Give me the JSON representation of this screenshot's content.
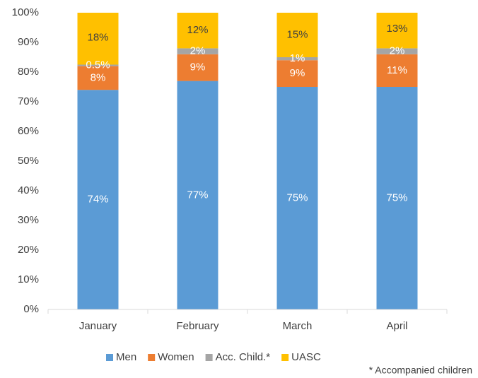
{
  "chart_data": {
    "type": "stacked_bar",
    "categories": [
      "January",
      "February",
      "March",
      "April"
    ],
    "series": [
      {
        "name": "Men",
        "color": "#5b9bd5",
        "label_color": "#ffffff",
        "values": [
          74,
          77,
          75,
          75
        ],
        "value_labels": [
          "74%",
          "77%",
          "75%",
          "75%"
        ]
      },
      {
        "name": "Women",
        "color": "#ed7d31",
        "label_color": "#ffffff",
        "values": [
          8,
          9,
          9,
          11
        ],
        "value_labels": [
          "8%",
          "9%",
          "9%",
          "11%"
        ]
      },
      {
        "name": "Acc. Child.*",
        "color": "#a5a5a5",
        "label_color": "#ffffff",
        "values": [
          0.5,
          2,
          1,
          2
        ],
        "value_labels": [
          "0.5%",
          "2%",
          "1%",
          "2%"
        ]
      },
      {
        "name": "UASC",
        "color": "#ffc000",
        "label_color": "#404040",
        "values": [
          18,
          12,
          15,
          13
        ],
        "value_labels": [
          "18%",
          "12%",
          "15%",
          "13%"
        ]
      }
    ],
    "ylim": [
      0,
      100
    ],
    "yticks": [
      {
        "value": 0,
        "label": "0%"
      },
      {
        "value": 10,
        "label": "10%"
      },
      {
        "value": 20,
        "label": "20%"
      },
      {
        "value": 30,
        "label": "30%"
      },
      {
        "value": 40,
        "label": "40%"
      },
      {
        "value": 50,
        "label": "50%"
      },
      {
        "value": 60,
        "label": "60%"
      },
      {
        "value": 70,
        "label": "70%"
      },
      {
        "value": 80,
        "label": "80%"
      },
      {
        "value": 90,
        "label": "90%"
      },
      {
        "value": 100,
        "label": "100%"
      }
    ],
    "grid": false,
    "legend": "bottom",
    "footnote": "* Accompanied children"
  }
}
